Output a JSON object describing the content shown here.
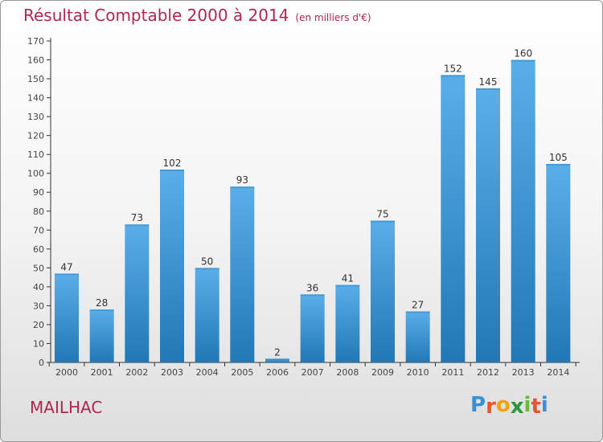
{
  "header": {
    "title": "Résultat Comptable 2000 à 2014",
    "subtitle": "(en milliers d'€)"
  },
  "footer": {
    "town": "MAILHAC",
    "logo_letters": [
      "P",
      "r",
      "o",
      "x",
      "i",
      "t",
      "i"
    ],
    "logo_colors": [
      "#3a8fd6",
      "#e8552a",
      "#f2a20c",
      "#2a9a3c",
      "#6cb83a",
      "#e8552a",
      "#3a8fd6"
    ]
  },
  "colors": {
    "bar_light": "#5aaeea",
    "bar_dark": "#2178b5",
    "axis": "#333333",
    "grid_tick": "#444444",
    "title": "#b0264e"
  },
  "chart_data": {
    "type": "bar",
    "categories": [
      "2000",
      "2001",
      "2002",
      "2003",
      "2004",
      "2005",
      "2006",
      "2007",
      "2008",
      "2009",
      "2010",
      "2011",
      "2012",
      "2013",
      "2014"
    ],
    "values": [
      47,
      28,
      73,
      102,
      50,
      93,
      2,
      36,
      41,
      75,
      27,
      152,
      145,
      160,
      105
    ],
    "title": "Résultat Comptable 2000 à 2014",
    "subtitle": "(en milliers d'€)",
    "xlabel": "",
    "ylabel": "",
    "ylim": [
      0,
      170
    ],
    "yticks": [
      0,
      10,
      20,
      30,
      40,
      50,
      60,
      70,
      80,
      90,
      100,
      110,
      120,
      130,
      140,
      150,
      160,
      170
    ],
    "grid": false,
    "data_labels": true
  }
}
